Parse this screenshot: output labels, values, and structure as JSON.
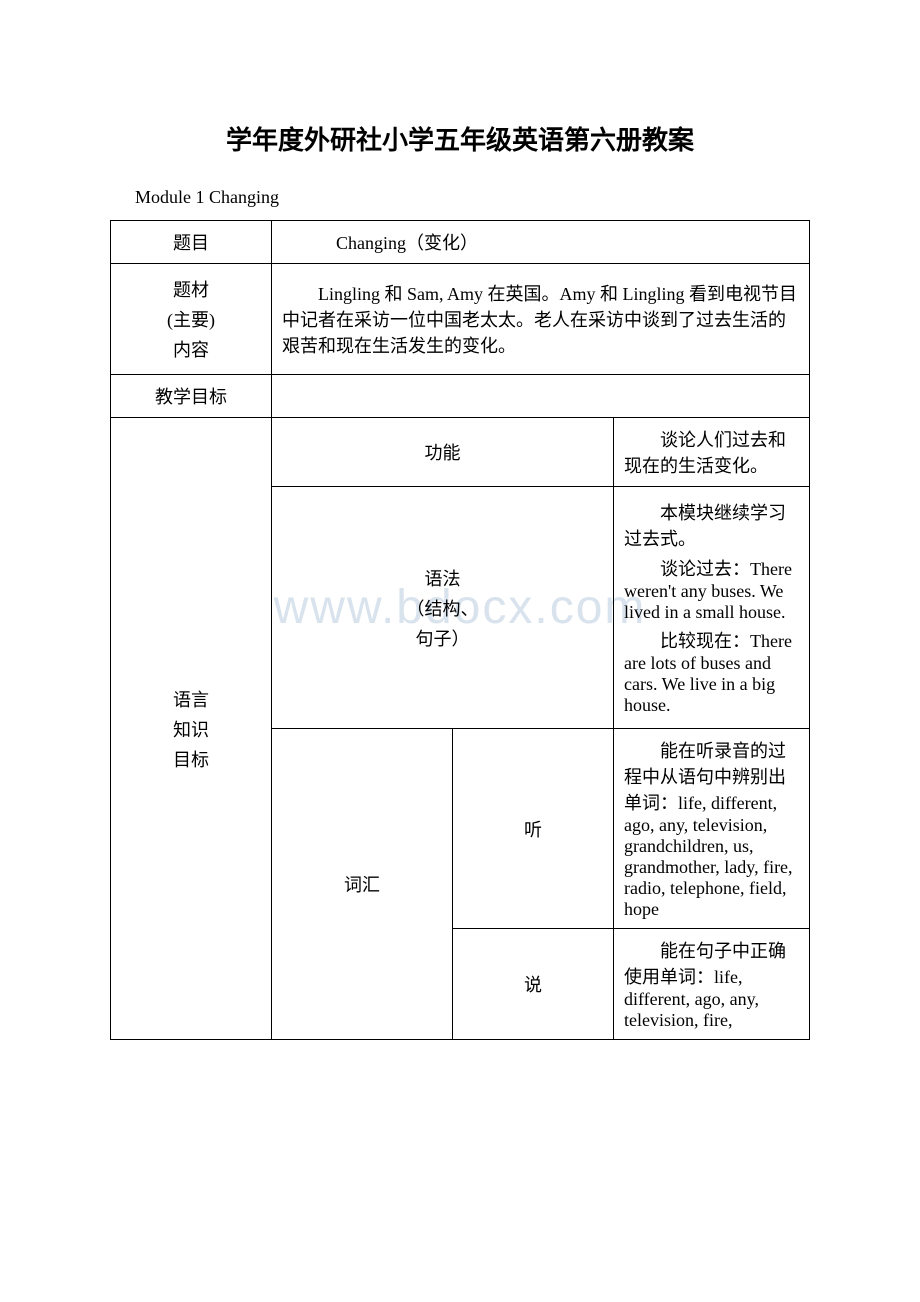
{
  "title": "学年度外研社小学五年级英语第六册教案",
  "module_line": "Module 1 Changing",
  "watermark": "www.bdocx.com",
  "rows": {
    "topic_label": "题目",
    "topic_value": "Changing（变化）",
    "material_label_l1": "题材",
    "material_label_l2": "(主要)",
    "material_label_l3": "内容",
    "material_value": "　　Lingling 和 Sam, Amy 在英国。Amy 和 Lingling 看到电视节目中记者在采访一位中国老太太。老人在采访中谈到了过去生活的艰苦和现在生活发生的变化。",
    "teaching_goal": "教学目标",
    "lang_goal_l1": "语言",
    "lang_goal_l2": "知识",
    "lang_goal_l3": "目标",
    "func_label": "功能",
    "func_value": "　　谈论人们过去和现在的生活变化。",
    "grammar_label_l1": "语法",
    "grammar_label_l2": "（结构、",
    "grammar_label_l3": "句子）",
    "grammar_p1": "　　本模块继续学习过去式。",
    "grammar_p2": "　　谈论过去：There weren't any buses. We lived in a small house.",
    "grammar_p3": "　　比较现在：There are lots of buses and cars. We live in a big house.",
    "vocab_label": "词汇",
    "listen_label": "听",
    "listen_value": "　　能在听录音的过程中从语句中辨别出单词：life, different, ago, any, television, grandchildren, us, grandmother, lady, fire, radio, telephone, field, hope",
    "speak_label": "说",
    "speak_value": "　　能在句子中正确使用单词：life, different, ago, any, television, fire,"
  }
}
